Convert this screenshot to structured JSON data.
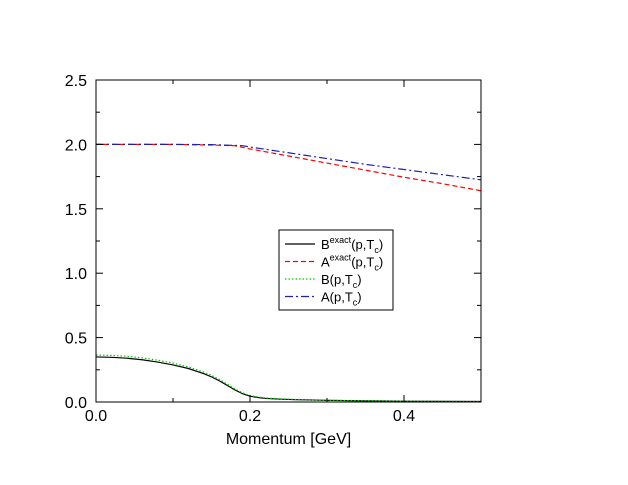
{
  "chart_data": {
    "type": "line",
    "title": "",
    "xlabel": "Momentum [GeV]",
    "ylabel": "",
    "xlim": [
      0.0,
      0.5
    ],
    "ylim": [
      0.0,
      2.5
    ],
    "xticks": [
      "0.0",
      "0.2",
      "0.4"
    ],
    "xtick_values": [
      0.0,
      0.2,
      0.4
    ],
    "yticks": [
      "0.0",
      "0.5",
      "1.0",
      "1.5",
      "2.0",
      "2.5"
    ],
    "ytick_values": [
      0.0,
      0.5,
      1.0,
      1.5,
      2.0,
      2.5
    ],
    "grid": false,
    "legend_position": "center-right",
    "series": [
      {
        "key": "b_exact",
        "legend": {
          "base": "B",
          "sup": "exact",
          "args": "(p,T",
          "sub": "c",
          "close": ")"
        },
        "color": "#000000",
        "dash": "",
        "x": [
          0.0,
          0.02,
          0.04,
          0.06,
          0.08,
          0.1,
          0.12,
          0.14,
          0.15,
          0.16,
          0.17,
          0.18,
          0.19,
          0.2,
          0.21,
          0.22,
          0.24,
          0.26,
          0.3,
          0.35,
          0.4,
          0.45,
          0.5
        ],
        "y": [
          0.35,
          0.347,
          0.34,
          0.328,
          0.31,
          0.288,
          0.26,
          0.22,
          0.195,
          0.165,
          0.13,
          0.095,
          0.065,
          0.045,
          0.035,
          0.028,
          0.022,
          0.018,
          0.013,
          0.009,
          0.006,
          0.005,
          0.004
        ]
      },
      {
        "key": "a_exact",
        "legend": {
          "base": "A",
          "sup": "exact",
          "args": "(p,T",
          "sub": "c",
          "close": ")"
        },
        "color": "#ff0000",
        "dash": "5,3",
        "x": [
          0.0,
          0.05,
          0.1,
          0.15,
          0.18,
          0.2,
          0.25,
          0.3,
          0.35,
          0.4,
          0.45,
          0.5
        ],
        "y": [
          2.0,
          2.0,
          2.0,
          1.995,
          1.99,
          1.965,
          1.91,
          1.855,
          1.8,
          1.745,
          1.695,
          1.64
        ]
      },
      {
        "key": "b_approx",
        "legend": {
          "base": "B",
          "sup": "",
          "args": "(p,T",
          "sub": "c",
          "close": ")"
        },
        "color": "#00cc00",
        "dash": "1.5,2",
        "x": [
          0.0,
          0.02,
          0.04,
          0.06,
          0.08,
          0.1,
          0.12,
          0.14,
          0.15,
          0.16,
          0.17,
          0.18,
          0.19,
          0.2,
          0.21,
          0.22,
          0.24,
          0.26,
          0.3,
          0.35,
          0.4,
          0.45,
          0.5
        ],
        "y": [
          0.365,
          0.362,
          0.355,
          0.343,
          0.325,
          0.302,
          0.273,
          0.232,
          0.207,
          0.176,
          0.14,
          0.103,
          0.072,
          0.05,
          0.039,
          0.031,
          0.024,
          0.02,
          0.014,
          0.01,
          0.007,
          0.005,
          0.004
        ]
      },
      {
        "key": "a_approx",
        "legend": {
          "base": "A",
          "sup": "",
          "args": "(p,T",
          "sub": "c",
          "close": ")"
        },
        "color": "#2020b0",
        "dash": "8,3,2,3",
        "x": [
          0.0,
          0.05,
          0.1,
          0.15,
          0.18,
          0.19,
          0.2,
          0.25,
          0.3,
          0.35,
          0.4,
          0.45,
          0.5
        ],
        "y": [
          2.0,
          2.0,
          2.0,
          1.998,
          1.992,
          1.99,
          1.98,
          1.935,
          1.89,
          1.845,
          1.805,
          1.765,
          1.725
        ]
      }
    ]
  }
}
